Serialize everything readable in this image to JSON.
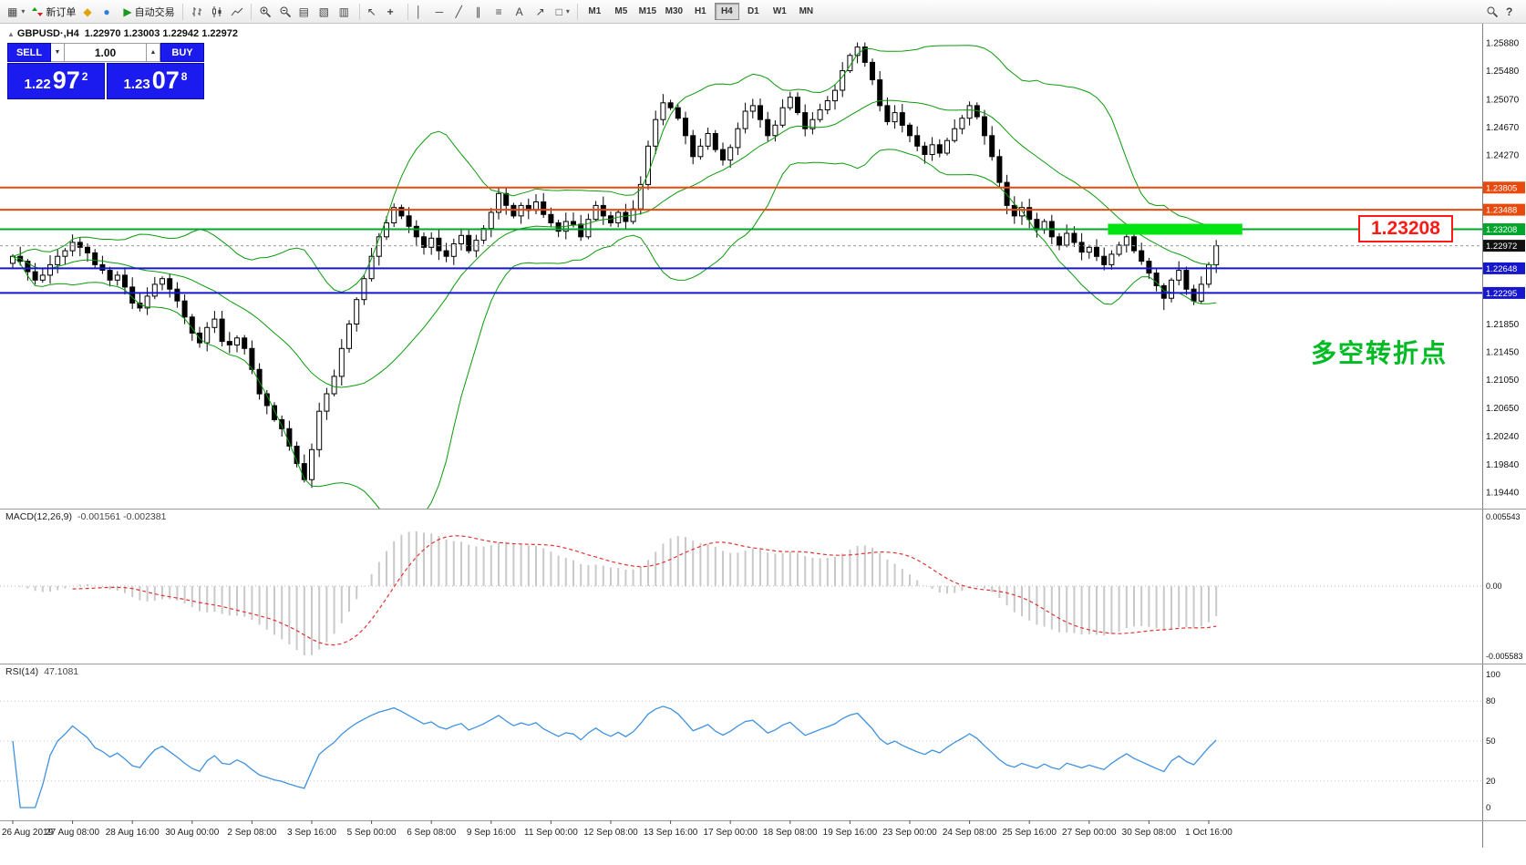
{
  "toolbar": {
    "new_order_label": "新订单",
    "autotrade_label": "自动交易",
    "timeframes": [
      "M1",
      "M5",
      "M15",
      "M30",
      "H1",
      "H4",
      "D1",
      "W1",
      "MN"
    ],
    "active_timeframe": "H4",
    "icon_glyphs": {
      "new-chart-icon": "▦",
      "favorites-icon": "◆",
      "market-watch-icon": "●",
      "autotrade-icon": "▶",
      "tile-windows-icon": "▤",
      "cascade-windows-icon": "▧",
      "arrange-windows-icon": "▥",
      "cursor-icon": "↖",
      "crosshair-icon": "+",
      "vertical-line-icon": "│",
      "horizontal-line-icon": "─",
      "trendline-icon": "╱",
      "channel-icon": "∥",
      "fibonacci-icon": "≡",
      "text-icon": "A",
      "arrow-icon": "↗",
      "shapes-icon": "□",
      "help-icon": "?",
      "caret": "▾"
    }
  },
  "quick_trade": {
    "sell_label": "SELL",
    "buy_label": "BUY",
    "volume": "1.00",
    "sell_big": "1.22",
    "sell_pips": "97",
    "sell_sup": "2",
    "buy_big": "1.23",
    "buy_pips": "07",
    "buy_sup": "8"
  },
  "chart": {
    "title_symbol": "GBPUSD·,H4",
    "title_ohlc": "1.22970 1.23003 1.22942 1.22972",
    "current_price": 1.22972,
    "current_price_label": "1.22972",
    "objects": {
      "hlines": [
        {
          "label": "1.23805",
          "price": 1.23805,
          "color": "#e8490c"
        },
        {
          "label": "1.23488",
          "price": 1.23488,
          "color": "#e8490c"
        },
        {
          "label": "1.23208",
          "price": 1.23208,
          "color": "#00a62c"
        },
        {
          "label": "1.22648",
          "price": 1.22648,
          "color": "#1616cc"
        },
        {
          "label": "1.22295",
          "price": 1.22295,
          "color": "#1616cc"
        }
      ],
      "highlight_rect": {
        "price": 1.23208,
        "from_bar": 147,
        "to_bar": 164,
        "color": "#00e412"
      },
      "price_callout": "1.23208",
      "annotation": "多空转折点"
    }
  },
  "chart_data": {
    "type": "candlestick",
    "title": "GBPUSD·,H4",
    "timeframe": "H4",
    "bars_per_label": 8,
    "x_labels": [
      "26 Aug 2019",
      "27 Aug 08:00",
      "28 Aug 16:00",
      "30 Aug 00:00",
      "2 Sep 08:00",
      "3 Sep 16:00",
      "5 Sep 00:00",
      "6 Sep 08:00",
      "9 Sep 16:00",
      "11 Sep 00:00",
      "12 Sep 08:00",
      "13 Sep 16:00",
      "17 Sep 00:00",
      "18 Sep 08:00",
      "19 Sep 16:00",
      "23 Sep 00:00",
      "24 Sep 08:00",
      "25 Sep 16:00",
      "27 Sep 00:00",
      "30 Sep 08:00",
      "1 Oct 16:00"
    ],
    "price_axis_ticks": [
      "1.25880",
      "1.25480",
      "1.25070",
      "1.24670",
      "1.24270",
      "1.21850",
      "1.21450",
      "1.21050",
      "1.20650",
      "1.20240",
      "1.19840",
      "1.19440"
    ],
    "ylim": [
      1.1944,
      1.2588
    ],
    "first_open": 1.2272,
    "closes": [
      1.2282,
      1.2275,
      1.226,
      1.2248,
      1.2255,
      1.227,
      1.2282,
      1.229,
      1.2302,
      1.2295,
      1.2287,
      1.227,
      1.2262,
      1.2248,
      1.2255,
      1.2238,
      1.2215,
      1.2208,
      1.2225,
      1.2242,
      1.225,
      1.2235,
      1.2218,
      1.2195,
      1.2172,
      1.2158,
      1.218,
      1.2192,
      1.216,
      1.2155,
      1.2165,
      1.215,
      1.212,
      1.2085,
      1.2068,
      1.2048,
      1.2035,
      1.201,
      1.1985,
      1.1962,
      1.2005,
      1.206,
      1.2085,
      1.211,
      1.215,
      1.2185,
      1.222,
      1.225,
      1.2282,
      1.231,
      1.233,
      1.2352,
      1.234,
      1.2325,
      1.231,
      1.2295,
      1.2308,
      1.229,
      1.2282,
      1.23,
      1.2312,
      1.229,
      1.2305,
      1.2322,
      1.2345,
      1.2372,
      1.2355,
      1.234,
      1.2355,
      1.2348,
      1.236,
      1.2342,
      1.233,
      1.2318,
      1.2332,
      1.2328,
      1.231,
      1.2335,
      1.2355,
      1.234,
      1.233,
      1.2345,
      1.2332,
      1.235,
      1.2385,
      1.244,
      1.2478,
      1.2502,
      1.2495,
      1.248,
      1.2455,
      1.2425,
      1.244,
      1.2458,
      1.2435,
      1.242,
      1.2438,
      1.2465,
      1.249,
      1.2498,
      1.2478,
      1.2455,
      1.247,
      1.2495,
      1.251,
      1.2488,
      1.2465,
      1.2478,
      1.2492,
      1.2505,
      1.252,
      1.2548,
      1.257,
      1.2582,
      1.256,
      1.2535,
      1.2498,
      1.2475,
      1.2488,
      1.247,
      1.2455,
      1.244,
      1.2428,
      1.2442,
      1.243,
      1.2448,
      1.2465,
      1.248,
      1.2498,
      1.2482,
      1.2455,
      1.2425,
      1.2388,
      1.2355,
      1.234,
      1.2352,
      1.2335,
      1.232,
      1.2332,
      1.231,
      1.2298,
      1.2315,
      1.2302,
      1.2288,
      1.2295,
      1.2282,
      1.227,
      1.2285,
      1.2298,
      1.231,
      1.229,
      1.2275,
      1.2258,
      1.224,
      1.2222,
      1.2248,
      1.2262,
      1.2235,
      1.2218,
      1.2242,
      1.227,
      1.22972
    ],
    "wick_overrides": [
      {
        "i": 39,
        "low": 1.1958
      },
      {
        "i": 113,
        "high": 1.25885
      },
      {
        "i": 154,
        "low": 1.2205
      },
      {
        "i": 158,
        "low": 1.2212
      }
    ],
    "overlays": {
      "bollinger": {
        "period": 20,
        "deviation": 2,
        "color": "#0b9b0b"
      }
    },
    "indicators": {
      "macd": {
        "label": "MACD(12,26,9)",
        "values": "-0.001561 -0.002381",
        "axis": [
          "0.005543",
          "0.00",
          "-0.005583"
        ],
        "fast": 12,
        "slow": 26,
        "signal": 9
      },
      "rsi": {
        "label": "RSI(14)",
        "value": "47.1081",
        "axis": [
          "100",
          "80",
          "50",
          "20",
          "0"
        ],
        "period": 14
      }
    }
  }
}
